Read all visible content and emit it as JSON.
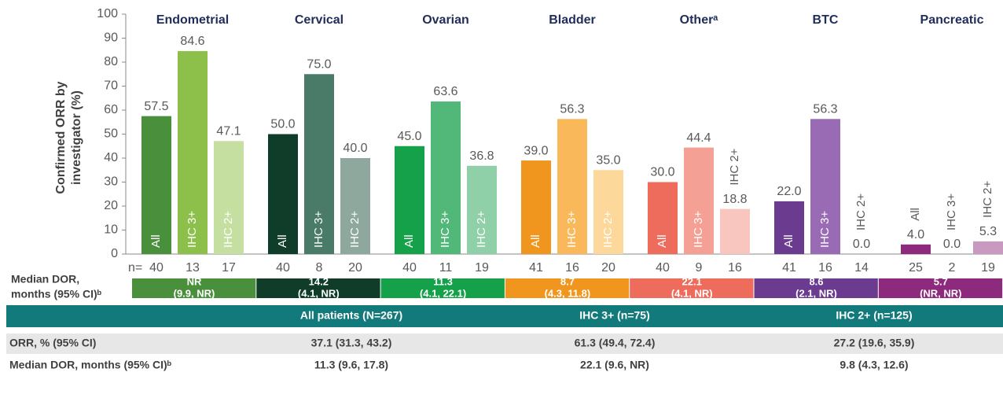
{
  "chart_data": {
    "type": "bar",
    "ylabel_lines": [
      "Confirmed ORR by",
      "investigator (%)"
    ],
    "ylim": [
      0,
      100
    ],
    "yticks": [
      0,
      10,
      20,
      30,
      40,
      50,
      60,
      70,
      80,
      90,
      100
    ],
    "categories": [
      "Endometrial",
      "Cervical",
      "Ovarian",
      "Bladder",
      "Otherᵃ",
      "BTC",
      "Pancreatic"
    ],
    "n_label": "n=",
    "series": [
      {
        "name": "All",
        "colors": [
          "#4a8f3c",
          "#0f3d2a",
          "#15a04a",
          "#f0961e",
          "#ee6c5c",
          "#6a3b8f",
          "#8e2a7d"
        ],
        "values": [
          57.5,
          50.0,
          45.0,
          39.0,
          30.0,
          22.0,
          4.0
        ],
        "value_labels": [
          "57.5",
          "50.0",
          "45.0",
          "39.0",
          "30.0",
          "22.0",
          "4.0"
        ],
        "n": [
          40,
          40,
          40,
          41,
          40,
          41,
          25
        ]
      },
      {
        "name": "IHC 3+",
        "colors": [
          "#8cc04a",
          "#4a7a68",
          "#52b87a",
          "#f9b95a",
          "#f4a095",
          "#9a6bb5",
          "#b06aa5"
        ],
        "values": [
          84.6,
          75.0,
          63.6,
          56.3,
          44.4,
          56.3,
          0.0
        ],
        "value_labels": [
          "84.6",
          "75.0",
          "63.6",
          "56.3",
          "44.4",
          "56.3",
          "0.0"
        ],
        "n": [
          13,
          8,
          11,
          16,
          9,
          16,
          2
        ]
      },
      {
        "name": "IHC 2+",
        "colors": [
          "#c5dfa0",
          "#8ea89e",
          "#90d0a8",
          "#fcd89a",
          "#f8c6be",
          "#c8b0d8",
          "#c89ac0"
        ],
        "values": [
          47.1,
          40.0,
          36.8,
          35.0,
          18.8,
          0.0,
          5.3
        ],
        "value_labels": [
          "47.1",
          "40.0",
          "36.8",
          "35.0",
          "18.8",
          "0.0",
          "5.3"
        ],
        "n": [
          17,
          20,
          19,
          20,
          16,
          14,
          19
        ]
      }
    ],
    "dor": {
      "label_lines": [
        "Median DOR,",
        "months (95% CI)ᵇ"
      ],
      "values": [
        "NR",
        "14.2",
        "11.3",
        "8.7",
        "22.1",
        "8.6",
        "5.7"
      ],
      "ci": [
        "(9.9, NR)",
        "(4.1, NR)",
        "(4.1, 22.1)",
        "(4.3, 11.8)",
        "(4.1, NR)",
        "(2.1, NR)",
        "(NR, NR)"
      ]
    }
  },
  "table": {
    "headers": [
      "All patients (N=267)",
      "IHC 3+ (n=75)",
      "IHC 2+ (n=125)"
    ],
    "rows": [
      {
        "label": "ORR, % (95% CI)",
        "cells": [
          "37.1 (31.3, 43.2)",
          "61.3 (49.4, 72.4)",
          "27.2 (19.6, 35.9)"
        ]
      },
      {
        "label": "Median DOR, months (95% CI)ᵇ",
        "cells": [
          "11.3 (9.6, 17.8)",
          "22.1 (9.6, NR)",
          "9.8 (4.3, 12.6)"
        ]
      }
    ]
  }
}
